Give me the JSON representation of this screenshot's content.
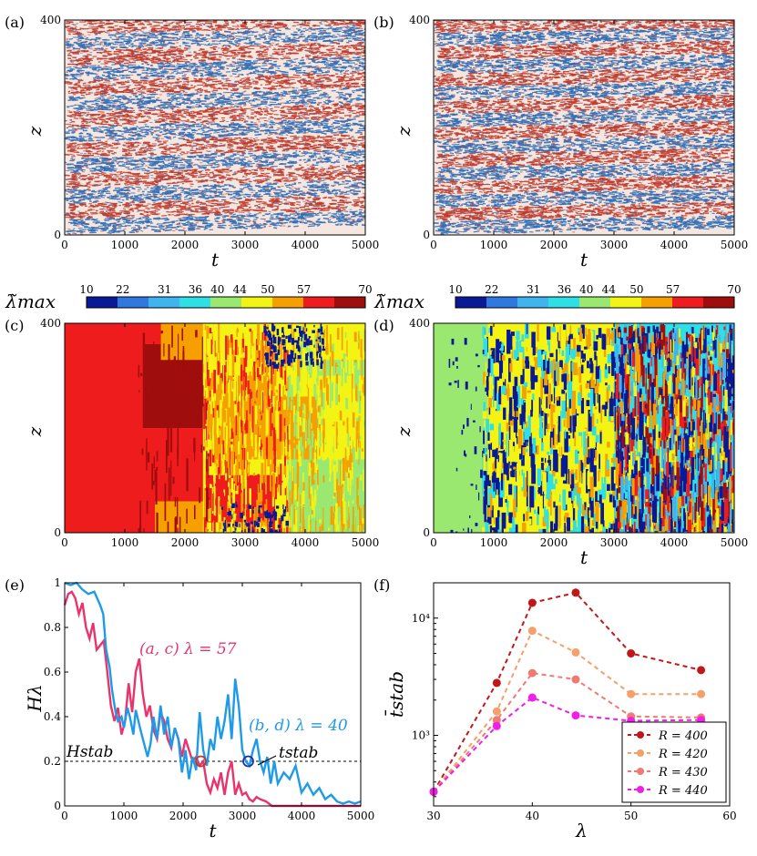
{
  "figure": {
    "panel_labels": [
      "(a)",
      "(b)",
      "(c)",
      "(d)",
      "(e)",
      "(f)"
    ]
  },
  "chart_data": [
    {
      "id": "a",
      "type": "heatmap",
      "panel": "(a)",
      "xlabel": "t",
      "ylabel": "z",
      "xlim": [
        0,
        5000
      ],
      "ylim": [
        0,
        400
      ],
      "xticks": [
        0,
        1000,
        2000,
        3000,
        4000,
        5000
      ],
      "yticks": [
        0,
        400
      ],
      "colors": [
        "#c0392b",
        "#2f6db5",
        "#f5e6df"
      ]
    },
    {
      "id": "b",
      "type": "heatmap",
      "panel": "(b)",
      "xlabel": "t",
      "ylabel": "z",
      "xlim": [
        0,
        5000
      ],
      "ylim": [
        0,
        400
      ],
      "xticks": [
        0,
        1000,
        2000,
        3000,
        4000,
        5000
      ],
      "yticks": [
        0,
        400
      ],
      "colors": [
        "#c0392b",
        "#2f6db5",
        "#f5e6df"
      ]
    },
    {
      "id": "c",
      "type": "heatmap",
      "panel": "(c)",
      "xlabel": "",
      "ylabel": "z",
      "xlim": [
        0,
        5000
      ],
      "ylim": [
        0,
        400
      ],
      "xticks": [
        0,
        1000,
        2000,
        3000,
        4000,
        5000
      ],
      "yticks": [
        0,
        400
      ],
      "colorbar": {
        "label": "λ̃max",
        "ticks": [
          "10",
          "22",
          "31",
          "36",
          "40",
          "44",
          "50",
          "57",
          "70"
        ],
        "colors": [
          "#0a1a96",
          "#2f78e0",
          "#3fb4ee",
          "#2ee0e6",
          "#9be870",
          "#f4f414",
          "#f5a000",
          "#ee1c1c",
          "#a00d0d"
        ]
      },
      "regions": [
        {
          "t0": 0,
          "t1": 2400,
          "value": 57,
          "note": "mostly red"
        },
        {
          "t0": 2400,
          "t1": 3700,
          "value": 44,
          "note": "yellow/orange mix"
        },
        {
          "t0": 3700,
          "t1": 5000,
          "value": 40,
          "note": "green/yellow"
        }
      ]
    },
    {
      "id": "d",
      "type": "heatmap",
      "panel": "(d)",
      "xlabel": "t",
      "ylabel": "z",
      "xlim": [
        0,
        5000
      ],
      "ylim": [
        0,
        400
      ],
      "xticks": [
        0,
        1000,
        2000,
        3000,
        4000,
        5000
      ],
      "yticks": [
        0,
        400
      ],
      "colorbar": {
        "label": "λ̃max",
        "ticks": [
          "10",
          "22",
          "31",
          "36",
          "40",
          "44",
          "50",
          "57",
          "70"
        ],
        "colors": [
          "#0a1a96",
          "#2f78e0",
          "#3fb4ee",
          "#2ee0e6",
          "#9be870",
          "#f4f414",
          "#f5a000",
          "#ee1c1c",
          "#a00d0d"
        ]
      }
    },
    {
      "id": "e",
      "type": "line",
      "panel": "(e)",
      "xlabel": "t",
      "ylabel": "Hλ",
      "xlim": [
        0,
        5000
      ],
      "ylim": [
        0,
        1
      ],
      "xticks": [
        0,
        1000,
        2000,
        3000,
        4000,
        5000
      ],
      "yticks": [
        0,
        0.2,
        0.4,
        0.6,
        0.8,
        1
      ],
      "hline": {
        "y": 0.2,
        "label": "Hstab"
      },
      "annotations": [
        {
          "text": "(a, c) λ = 57",
          "color": "#e8336d"
        },
        {
          "text": "(b, d) λ = 40",
          "color": "#1e9be8"
        },
        {
          "text": "tstab",
          "color": "#000000"
        }
      ],
      "markers": [
        {
          "series": "(a, c) λ = 57",
          "x": 2300,
          "y": 0.2,
          "color": "#c0392b"
        },
        {
          "series": "(b, d) λ = 40",
          "x": 3100,
          "y": 0.2,
          "color": "#1a2fa8"
        }
      ],
      "series": [
        {
          "color": "#e8336d",
          "x": [
            0,
            60,
            120,
            180,
            240,
            300,
            360,
            420,
            480,
            540,
            600,
            660,
            720,
            780,
            840,
            900,
            960,
            1020,
            1080,
            1140,
            1200,
            1260,
            1320,
            1380,
            1440,
            1500,
            1560,
            1620,
            1680,
            1740,
            1800,
            1860,
            1920,
            1980,
            2040,
            2100,
            2160,
            2220,
            2280,
            2340,
            2400,
            2460,
            2520,
            2580,
            2640,
            2700,
            2760,
            2820,
            2880,
            2940,
            3000,
            3060,
            3120,
            3180,
            3240,
            3300,
            3400,
            3500,
            3700,
            4000,
            4500,
            5000
          ],
          "y": [
            0.9,
            0.95,
            0.96,
            0.93,
            0.86,
            0.91,
            0.8,
            0.75,
            0.82,
            0.7,
            0.72,
            0.74,
            0.6,
            0.45,
            0.38,
            0.44,
            0.32,
            0.38,
            0.55,
            0.42,
            0.6,
            0.66,
            0.5,
            0.4,
            0.45,
            0.34,
            0.3,
            0.42,
            0.38,
            0.3,
            0.26,
            0.35,
            0.3,
            0.22,
            0.3,
            0.25,
            0.2,
            0.22,
            0.18,
            0.2,
            0.1,
            0.06,
            0.12,
            0.08,
            0.15,
            0.05,
            0.15,
            0.2,
            0.05,
            0.1,
            0.05,
            0.06,
            0.03,
            0.02,
            0.04,
            0.03,
            0.02,
            0.0,
            0.0,
            0.0,
            0.0,
            0.0
          ]
        },
        {
          "color": "#1e9be8",
          "x": [
            0,
            100,
            200,
            300,
            400,
            500,
            600,
            650,
            700,
            760,
            800,
            860,
            900,
            960,
            1000,
            1060,
            1100,
            1160,
            1200,
            1300,
            1400,
            1450,
            1500,
            1560,
            1620,
            1680,
            1740,
            1800,
            1860,
            1920,
            1980,
            2040,
            2100,
            2160,
            2220,
            2280,
            2340,
            2400,
            2460,
            2520,
            2580,
            2640,
            2700,
            2760,
            2820,
            2880,
            2940,
            3000,
            3060,
            3120,
            3180,
            3240,
            3300,
            3360,
            3420,
            3480,
            3540,
            3600,
            3700,
            3800,
            3900,
            4000,
            4100,
            4200,
            4300,
            4400,
            4500,
            4600,
            4700,
            4800,
            4900,
            5000
          ],
          "y": [
            1.0,
            0.99,
            1.0,
            0.97,
            0.95,
            0.96,
            0.9,
            0.86,
            0.7,
            0.62,
            0.52,
            0.42,
            0.38,
            0.4,
            0.35,
            0.44,
            0.4,
            0.32,
            0.43,
            0.32,
            0.22,
            0.28,
            0.4,
            0.3,
            0.45,
            0.32,
            0.4,
            0.26,
            0.35,
            0.3,
            0.15,
            0.25,
            0.12,
            0.22,
            0.16,
            0.42,
            0.25,
            0.18,
            0.3,
            0.25,
            0.4,
            0.3,
            0.38,
            0.5,
            0.3,
            0.57,
            0.45,
            0.25,
            0.2,
            0.18,
            0.25,
            0.3,
            0.2,
            0.15,
            0.22,
            0.1,
            0.2,
            0.1,
            0.15,
            0.12,
            0.18,
            0.06,
            0.1,
            0.05,
            0.08,
            0.03,
            0.05,
            0.02,
            0.01,
            0.02,
            0.01,
            0.02
          ]
        }
      ]
    },
    {
      "id": "f",
      "type": "line",
      "panel": "(f)",
      "xlabel": "λ",
      "ylabel": "t̄stab",
      "xlim": [
        30,
        60
      ],
      "ylim": [
        250,
        20000
      ],
      "yscale": "log",
      "xticks": [
        30,
        40,
        50,
        60
      ],
      "yticks": [
        1000,
        10000
      ],
      "ytick_labels": [
        "10³",
        "10⁴"
      ],
      "legend": "bottom-right",
      "x": [
        30,
        36.4,
        40,
        44.4,
        50,
        57.1
      ],
      "series": [
        {
          "name": "R = 400",
          "color": "#c01818",
          "values": [
            330,
            2800,
            13500,
            16500,
            5000,
            3600
          ]
        },
        {
          "name": "R = 420",
          "color": "#f4a06a",
          "values": [
            330,
            1600,
            7800,
            5100,
            2250,
            2250
          ]
        },
        {
          "name": "R = 430",
          "color": "#ee7a72",
          "values": [
            330,
            1350,
            3400,
            3000,
            1450,
            1420
          ]
        },
        {
          "name": "R = 440",
          "color": "#f01ee6",
          "values": [
            330,
            1200,
            2100,
            1480,
            1330,
            1350
          ]
        }
      ]
    }
  ]
}
